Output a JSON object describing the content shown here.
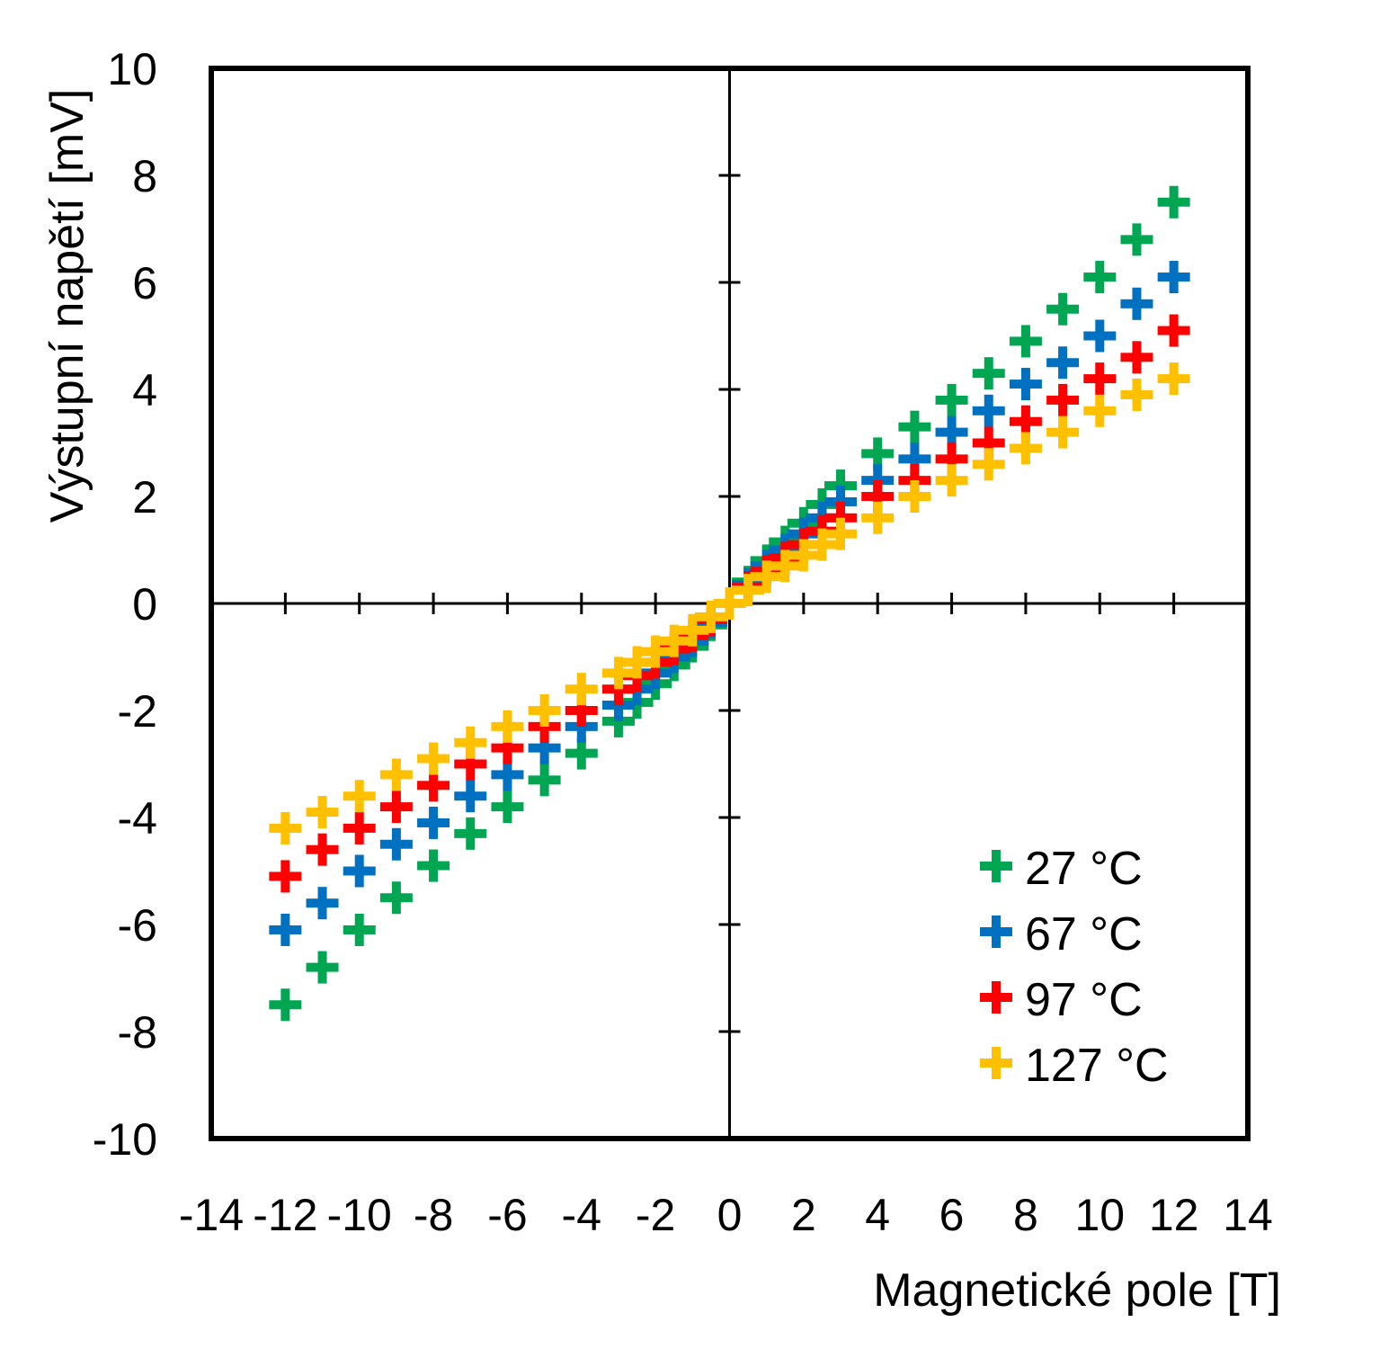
{
  "chart_data": {
    "type": "scatter",
    "xlabel": "Magnetické pole [T]",
    "ylabel": "Výstupní napětí [mV]",
    "xlim": [
      -14,
      14
    ],
    "ylim": [
      -10,
      10
    ],
    "xticks": [
      -14,
      -12,
      -10,
      -8,
      -6,
      -4,
      -2,
      0,
      2,
      4,
      6,
      8,
      10,
      12,
      14
    ],
    "yticks": [
      -10,
      -8,
      -6,
      -4,
      -2,
      0,
      2,
      4,
      6,
      8,
      10
    ],
    "xtick_labels": [
      "-14",
      "-12",
      "-10",
      "-8",
      "-6",
      "-4",
      "-2",
      "0",
      "2",
      "4",
      "6",
      "8",
      "10",
      "12",
      "14"
    ],
    "ytick_labels": [
      "-10",
      "-8",
      "-6",
      "-4",
      "-2",
      "0",
      "2",
      "4",
      "6",
      "8",
      "10"
    ],
    "marker": "plus",
    "legend_position": "bottom-right",
    "series": [
      {
        "name": "27 °C",
        "color": "#00a651",
        "x": [
          -12,
          -11,
          -10,
          -9,
          -8,
          -7,
          -6,
          -5,
          -4,
          -3,
          -2.5,
          -2,
          -1.5,
          -1,
          -0.5,
          0,
          0.5,
          1,
          1.5,
          2,
          2.5,
          3,
          4,
          5,
          6,
          7,
          8,
          9,
          10,
          11,
          12
        ],
        "y": [
          -7.5,
          -6.8,
          -6.1,
          -5.5,
          -4.9,
          -4.3,
          -3.8,
          -3.3,
          -2.8,
          -2.2,
          -1.85,
          -1.5,
          -1.15,
          -0.8,
          -0.4,
          0,
          0.4,
          0.8,
          1.15,
          1.5,
          1.85,
          2.2,
          2.8,
          3.3,
          3.8,
          4.3,
          4.9,
          5.5,
          6.1,
          6.8,
          7.5
        ]
      },
      {
        "name": "67 °C",
        "color": "#0070c0",
        "x": [
          -12,
          -11,
          -10,
          -9,
          -8,
          -7,
          -6,
          -5,
          -4,
          -3,
          -2.5,
          -2,
          -1.5,
          -1,
          -0.5,
          0,
          0.5,
          1,
          1.5,
          2,
          2.5,
          3,
          4,
          5,
          6,
          7,
          8,
          9,
          10,
          11,
          12
        ],
        "y": [
          -6.1,
          -5.6,
          -5.0,
          -4.5,
          -4.1,
          -3.6,
          -3.2,
          -2.7,
          -2.3,
          -1.9,
          -1.6,
          -1.3,
          -1.0,
          -0.7,
          -0.35,
          0,
          0.35,
          0.7,
          1.0,
          1.3,
          1.6,
          1.9,
          2.3,
          2.7,
          3.2,
          3.6,
          4.1,
          4.5,
          5.0,
          5.6,
          6.1
        ]
      },
      {
        "name": "97 °C",
        "color": "#ff0000",
        "x": [
          -12,
          -11,
          -10,
          -9,
          -8,
          -7,
          -6,
          -5,
          -4,
          -3,
          -2.5,
          -2,
          -1.5,
          -1,
          -0.5,
          0,
          0.5,
          1,
          1.5,
          2,
          2.5,
          3,
          4,
          5,
          6,
          7,
          8,
          9,
          10,
          11,
          12
        ],
        "y": [
          -5.1,
          -4.6,
          -4.2,
          -3.8,
          -3.4,
          -3.0,
          -2.7,
          -2.3,
          -2.0,
          -1.6,
          -1.35,
          -1.1,
          -0.85,
          -0.6,
          -0.3,
          0,
          0.3,
          0.6,
          0.85,
          1.1,
          1.35,
          1.6,
          2.0,
          2.3,
          2.7,
          3.0,
          3.4,
          3.8,
          4.2,
          4.6,
          5.1
        ]
      },
      {
        "name": "127 °C",
        "color": "#ffc000",
        "x": [
          -12,
          -11,
          -10,
          -9,
          -8,
          -7,
          -6,
          -5,
          -4,
          -3,
          -2.5,
          -2,
          -1.5,
          -1,
          -0.5,
          0,
          0.5,
          1,
          1.5,
          2,
          2.5,
          3,
          4,
          5,
          6,
          7,
          8,
          9,
          10,
          11,
          12
        ],
        "y": [
          -4.2,
          -3.9,
          -3.6,
          -3.2,
          -2.9,
          -2.6,
          -2.3,
          -2.0,
          -1.6,
          -1.3,
          -1.1,
          -0.9,
          -0.7,
          -0.5,
          -0.25,
          0,
          0.25,
          0.5,
          0.7,
          0.9,
          1.1,
          1.3,
          1.6,
          2.0,
          2.3,
          2.6,
          2.9,
          3.2,
          3.6,
          3.9,
          4.2
        ]
      }
    ]
  }
}
